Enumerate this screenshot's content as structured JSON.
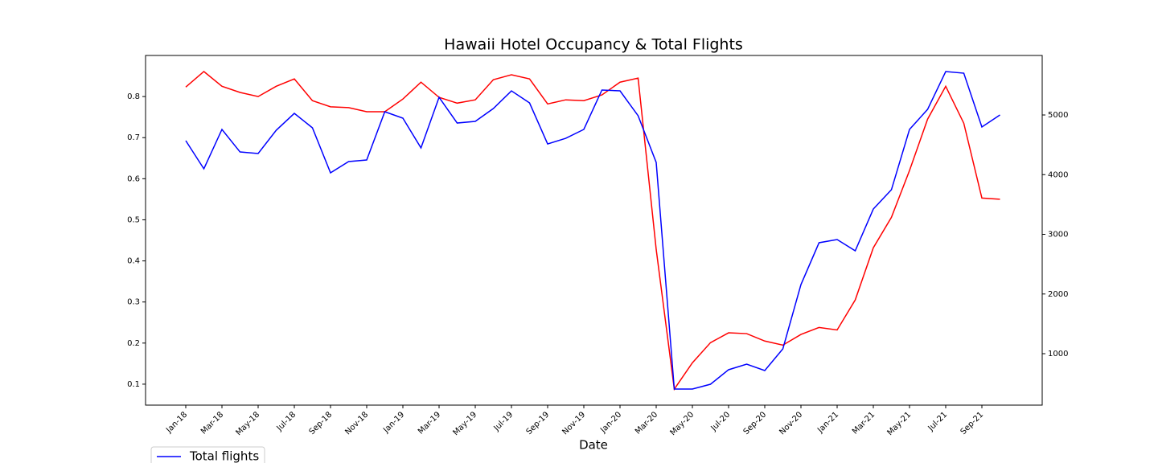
{
  "chart_data": {
    "type": "line",
    "title": "Hawaii Hotel Occupancy & Total Flights",
    "x_label": "Date",
    "categories": [
      "Jan-18",
      null,
      "Mar-18",
      null,
      "May-18",
      null,
      "Jul-18",
      null,
      "Sep-18",
      null,
      "Nov-18",
      null,
      "Jan-19",
      null,
      "Mar-19",
      null,
      "May-19",
      null,
      "Jul-19",
      null,
      "Sep-19",
      null,
      "Nov-19",
      null,
      "Jan-20",
      null,
      "Mar-20",
      null,
      "May-20",
      null,
      "Jul-20",
      null,
      "Sep-20",
      null,
      "Nov-20",
      null,
      "Jan-21",
      null,
      "Mar-21",
      null,
      "May-21",
      null,
      "Jul-21",
      null,
      "Sep-21",
      null
    ],
    "series": [
      {
        "color": "#ff0000",
        "axis": "y",
        "values": [
          0.823,
          0.861,
          0.825,
          0.81,
          0.8,
          0.825,
          0.843,
          0.79,
          0.775,
          0.773,
          0.763,
          0.763,
          0.794,
          0.835,
          0.798,
          0.784,
          0.792,
          0.841,
          0.853,
          0.843,
          0.782,
          0.792,
          0.79,
          0.804,
          0.835,
          0.845,
          0.428,
          0.088,
          0.152,
          0.201,
          0.225,
          0.223,
          0.205,
          0.195,
          0.221,
          0.238,
          0.232,
          0.305,
          0.432,
          0.506,
          0.62,
          0.745,
          0.825,
          0.735,
          0.553,
          0.55
        ]
      },
      {
        "name": "Total flights",
        "color": "#0000ff",
        "axis": "y2",
        "values": [
          4569,
          4098,
          4758,
          4380,
          4354,
          4744,
          5027,
          4785,
          4030,
          4219,
          4246,
          5054,
          4946,
          4448,
          5296,
          4865,
          4892,
          5108,
          5404,
          5202,
          4515,
          4609,
          4758,
          5418,
          5404,
          4987,
          4205,
          407,
          407,
          488,
          731,
          825,
          717,
          1081,
          2158,
          2859,
          2912,
          2724,
          3424,
          3747,
          4758,
          5094,
          5727,
          5700,
          4798,
          5000
        ]
      }
    ],
    "ylim": [
      0.049,
      0.9
    ],
    "yticks": [
      0.1,
      0.2,
      0.3,
      0.4,
      0.5,
      0.6,
      0.7,
      0.8
    ],
    "y2lim": [
      138,
      5997
    ],
    "y2ticks": [
      1000,
      2000,
      3000,
      4000,
      5000
    ],
    "legend": "lower left"
  }
}
